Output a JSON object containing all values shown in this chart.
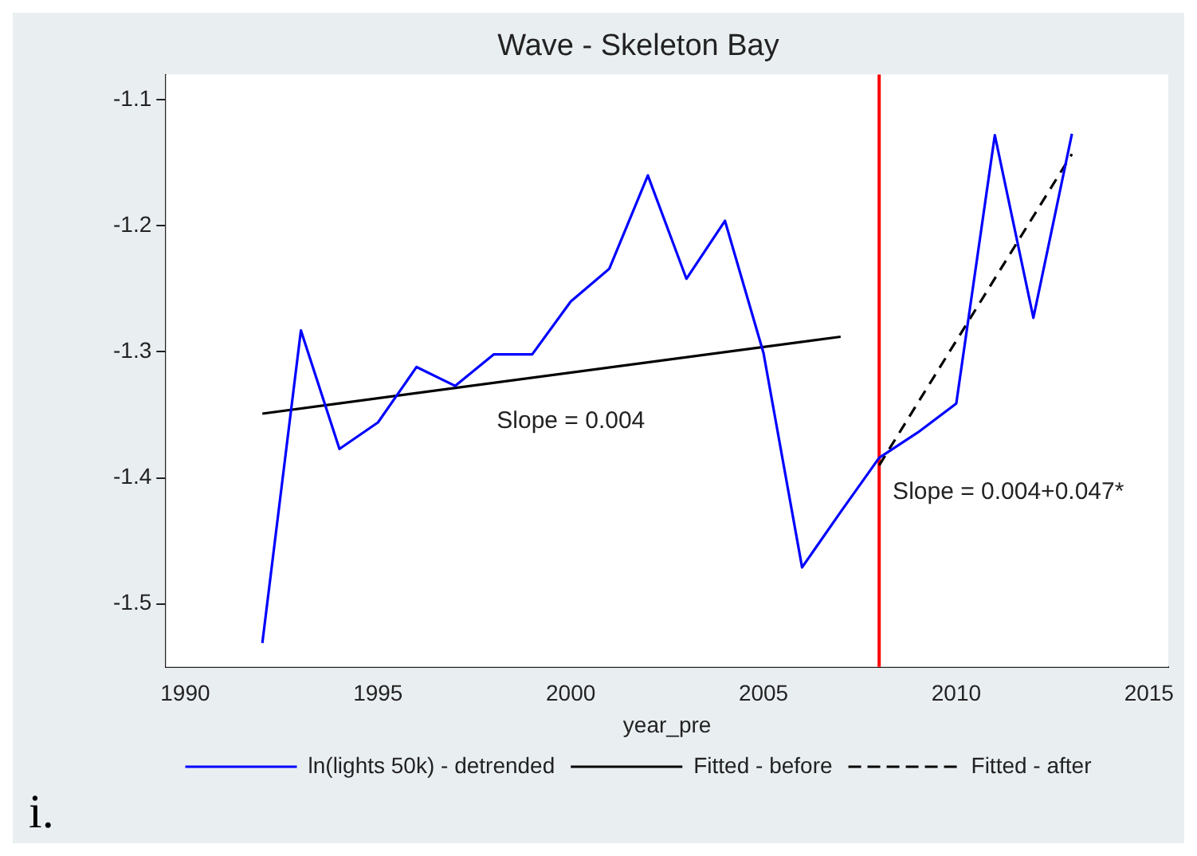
{
  "chart_data": {
    "type": "line",
    "title": "Wave - Skeleton Bay",
    "xlabel": "year_pre",
    "series": [
      {
        "name": "ln(lights 50k) - detrended",
        "color": "#0000ff",
        "line_style": "solid",
        "x": [
          1992,
          1993,
          1994,
          1995,
          1996,
          1997,
          1998,
          1999,
          2000,
          2001,
          2002,
          2003,
          2004,
          2005,
          2006,
          2007,
          2008,
          2009,
          2010,
          2011,
          2012,
          2013
        ],
        "values": [
          -1.531,
          -1.283,
          -1.377,
          -1.356,
          -1.312,
          -1.327,
          -1.302,
          -1.302,
          -1.26,
          -1.234,
          -1.16,
          -1.242,
          -1.196,
          -1.301,
          -1.471,
          -1.427,
          -1.384,
          -1.364,
          -1.341,
          -1.128,
          -1.273,
          -1.127
        ]
      },
      {
        "name": "Fitted - before",
        "color": "#000000",
        "line_style": "solid",
        "x": [
          1992,
          2007
        ],
        "values": [
          -1.349,
          -1.288
        ]
      },
      {
        "name": "Fitted - after",
        "color": "#000000",
        "line_style": "dashed",
        "x": [
          2008,
          2013
        ],
        "values": [
          -1.39,
          -1.143
        ]
      }
    ],
    "xlim": [
      1989.5,
      2015.5
    ],
    "xticks": [
      1990,
      1995,
      2000,
      2005,
      2010,
      2015
    ],
    "ylim": [
      -1.55,
      -1.08
    ],
    "yticks": [
      -1.5,
      -1.4,
      -1.3,
      -1.2,
      -1.1
    ],
    "ref_lines": [
      {
        "axis": "x",
        "value": 2008,
        "color": "#ff0000"
      }
    ],
    "annotations": [
      "Slope = 0.004",
      "Slope = 0.004+0.047*",
      "i."
    ],
    "grid": false,
    "legend": "bottom",
    "marker": "none"
  }
}
